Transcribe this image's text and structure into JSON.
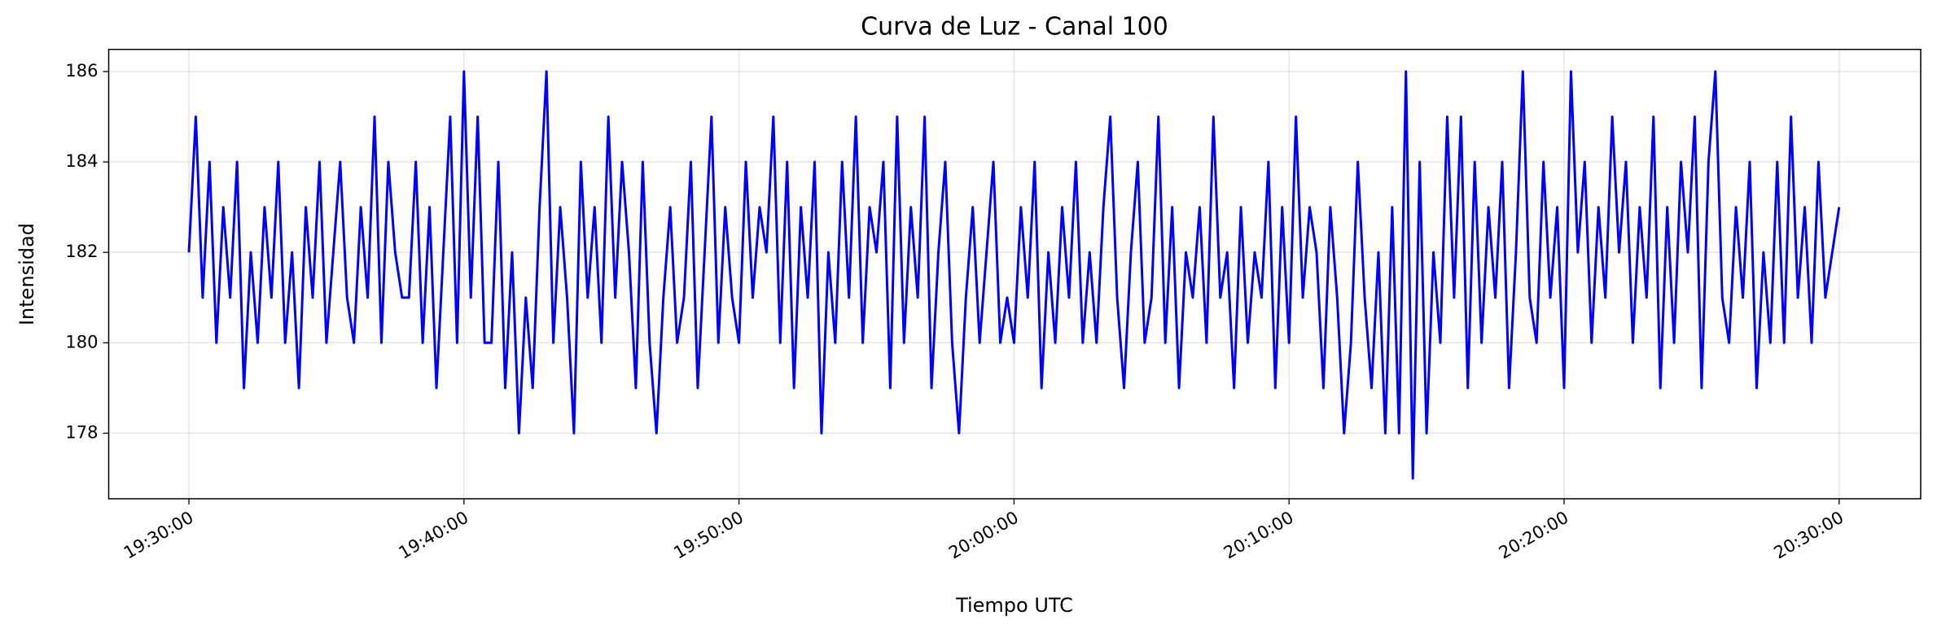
{
  "chart_data": {
    "type": "line",
    "title": "Curva de Luz - Canal 100",
    "xlabel": "Tiempo UTC",
    "ylabel": "Intensidad",
    "xlim": [
      "19:27:05",
      "20:32:58"
    ],
    "xticks": [
      "19:30:00",
      "19:40:00",
      "19:50:00",
      "20:00:00",
      "20:10:00",
      "20:20:00",
      "20:30:00"
    ],
    "ylim": [
      176.55,
      186.49
    ],
    "yticks": [
      178,
      180,
      182,
      184,
      186
    ],
    "grid": true,
    "x": [
      "19:30:00",
      "19:30:15",
      "19:30:30",
      "19:30:45",
      "19:31:00",
      "19:31:15",
      "19:31:30",
      "19:31:45",
      "19:32:00",
      "19:32:15",
      "19:32:30",
      "19:32:45",
      "19:33:00",
      "19:33:15",
      "19:33:30",
      "19:33:45",
      "19:34:00",
      "19:34:15",
      "19:34:30",
      "19:34:45",
      "19:35:00",
      "19:35:15",
      "19:35:30",
      "19:35:45",
      "19:36:00",
      "19:36:15",
      "19:36:30",
      "19:36:45",
      "19:37:00",
      "19:37:15",
      "19:37:30",
      "19:37:45",
      "19:38:00",
      "19:38:15",
      "19:38:30",
      "19:38:45",
      "19:39:00",
      "19:39:15",
      "19:39:30",
      "19:39:45",
      "19:40:00",
      "19:40:15",
      "19:40:30",
      "19:40:45",
      "19:41:00",
      "19:41:15",
      "19:41:30",
      "19:41:45",
      "19:42:00",
      "19:42:15",
      "19:42:30",
      "19:42:45",
      "19:43:00",
      "19:43:15",
      "19:43:30",
      "19:43:45",
      "19:44:00",
      "19:44:15",
      "19:44:30",
      "19:44:45",
      "19:45:00",
      "19:45:15",
      "19:45:30",
      "19:45:45",
      "19:46:00",
      "19:46:15",
      "19:46:30",
      "19:46:45",
      "19:47:00",
      "19:47:15",
      "19:47:30",
      "19:47:45",
      "19:48:00",
      "19:48:15",
      "19:48:30",
      "19:48:45",
      "19:49:00",
      "19:49:15",
      "19:49:30",
      "19:49:45",
      "19:50:00",
      "19:50:15",
      "19:50:30",
      "19:50:45",
      "19:51:00",
      "19:51:15",
      "19:51:30",
      "19:51:45",
      "19:52:00",
      "19:52:15",
      "19:52:30",
      "19:52:45",
      "19:53:00",
      "19:53:15",
      "19:53:30",
      "19:53:45",
      "19:54:00",
      "19:54:15",
      "19:54:30",
      "19:54:45",
      "19:55:00",
      "19:55:15",
      "19:55:30",
      "19:55:45",
      "19:56:00",
      "19:56:15",
      "19:56:30",
      "19:56:45",
      "19:57:00",
      "19:57:15",
      "19:57:30",
      "19:57:45",
      "19:58:00",
      "19:58:15",
      "19:58:30",
      "19:58:45",
      "19:59:00",
      "19:59:15",
      "19:59:30",
      "19:59:45",
      "20:00:00",
      "20:00:15",
      "20:00:30",
      "20:00:45",
      "20:01:00",
      "20:01:15",
      "20:01:30",
      "20:01:45",
      "20:02:00",
      "20:02:15",
      "20:02:30",
      "20:02:45",
      "20:03:00",
      "20:03:15",
      "20:03:30",
      "20:03:45",
      "20:04:00",
      "20:04:15",
      "20:04:30",
      "20:04:45",
      "20:05:00",
      "20:05:15",
      "20:05:30",
      "20:05:45",
      "20:06:00",
      "20:06:15",
      "20:06:30",
      "20:06:45",
      "20:07:00",
      "20:07:15",
      "20:07:30",
      "20:07:45",
      "20:08:00",
      "20:08:15",
      "20:08:30",
      "20:08:45",
      "20:09:00",
      "20:09:15",
      "20:09:30",
      "20:09:45",
      "20:10:00",
      "20:10:15",
      "20:10:30",
      "20:10:45",
      "20:11:00",
      "20:11:15",
      "20:11:30",
      "20:11:45",
      "20:12:00",
      "20:12:15",
      "20:12:30",
      "20:12:45",
      "20:13:00",
      "20:13:15",
      "20:13:30",
      "20:13:45",
      "20:14:00",
      "20:14:15",
      "20:14:30",
      "20:14:45",
      "20:15:00",
      "20:15:15",
      "20:15:30",
      "20:15:45",
      "20:16:00",
      "20:16:15",
      "20:16:30",
      "20:16:45",
      "20:17:00",
      "20:17:15",
      "20:17:30",
      "20:17:45",
      "20:18:00",
      "20:18:15",
      "20:18:30",
      "20:18:45",
      "20:19:00",
      "20:19:15",
      "20:19:30",
      "20:19:45",
      "20:20:00",
      "20:20:15",
      "20:20:30",
      "20:20:45",
      "20:21:00",
      "20:21:15",
      "20:21:30",
      "20:21:45",
      "20:22:00",
      "20:22:15",
      "20:22:30",
      "20:22:45",
      "20:23:00",
      "20:23:15",
      "20:23:30",
      "20:23:45",
      "20:24:00",
      "20:24:15",
      "20:24:30",
      "20:24:45",
      "20:25:00",
      "20:25:15",
      "20:25:30",
      "20:25:45",
      "20:26:00",
      "20:26:15",
      "20:26:30",
      "20:26:45",
      "20:27:00",
      "20:27:15",
      "20:27:30",
      "20:27:45",
      "20:28:00",
      "20:28:15",
      "20:28:30",
      "20:28:45",
      "20:29:00",
      "20:29:15",
      "20:29:30",
      "20:29:45",
      "20:30:00"
    ],
    "series": [
      {
        "name": "Canal 100",
        "color": "#0000ff",
        "values": [
          182,
          185,
          181,
          184,
          180,
          183,
          181,
          184,
          179,
          182,
          180,
          183,
          181,
          184,
          180,
          182,
          179,
          183,
          181,
          184,
          180,
          182,
          184,
          181,
          180,
          183,
          181,
          185,
          180,
          184,
          182,
          181,
          181,
          184,
          180,
          183,
          179,
          182,
          185,
          180,
          186,
          181,
          185,
          180,
          180,
          184,
          179,
          182,
          178,
          181,
          179,
          183,
          186,
          180,
          183,
          181,
          178,
          184,
          181,
          183,
          180,
          185,
          181,
          184,
          182,
          179,
          184,
          180,
          178,
          181,
          183,
          180,
          181,
          184,
          179,
          182,
          185,
          180,
          183,
          181,
          180,
          184,
          181,
          183,
          182,
          185,
          180,
          184,
          179,
          183,
          181,
          184,
          178,
          182,
          180,
          184,
          181,
          185,
          180,
          183,
          182,
          184,
          179,
          185,
          180,
          183,
          181,
          185,
          179,
          182,
          184,
          180,
          178,
          181,
          183,
          180,
          182,
          184,
          180,
          181,
          180,
          183,
          181,
          184,
          179,
          182,
          180,
          183,
          181,
          184,
          180,
          182,
          180,
          183,
          185,
          181,
          179,
          182,
          184,
          180,
          181,
          185,
          180,
          183,
          179,
          182,
          181,
          183,
          180,
          185,
          181,
          182,
          179,
          183,
          180,
          182,
          181,
          184,
          179,
          183,
          180,
          185,
          181,
          183,
          182,
          179,
          183,
          181,
          178,
          180,
          184,
          181,
          179,
          182,
          178,
          183,
          178,
          186,
          177,
          184,
          178,
          182,
          180,
          185,
          181,
          185,
          179,
          184,
          180,
          183,
          181,
          184,
          179,
          182,
          186,
          181,
          180,
          184,
          181,
          183,
          179,
          186,
          182,
          184,
          180,
          183,
          181,
          185,
          182,
          184,
          180,
          183,
          181,
          185,
          179,
          183,
          180,
          184,
          182,
          185,
          179,
          184,
          186,
          181,
          180,
          183,
          181,
          184,
          179,
          182,
          180,
          184,
          180,
          185,
          181,
          183,
          180,
          184,
          181,
          182,
          183
        ]
      }
    ]
  }
}
